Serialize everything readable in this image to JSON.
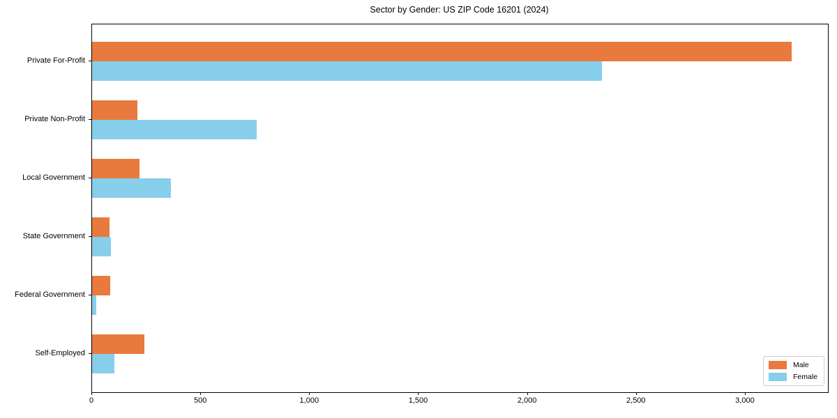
{
  "chart_data": {
    "type": "bar",
    "orientation": "horizontal",
    "title": "Sector by Gender: US ZIP Code 16201 (2024)",
    "categories": [
      "Private For-Profit",
      "Private Non-Profit",
      "Local Government",
      "State Government",
      "Federal Government",
      "Self-Employed"
    ],
    "series": [
      {
        "name": "Male",
        "color": "#e87a3d",
        "values": [
          3213,
          208,
          218,
          80,
          83,
          240
        ]
      },
      {
        "name": "Female",
        "color": "#87ceeb",
        "values": [
          2340,
          756,
          362,
          86,
          19,
          102
        ]
      }
    ],
    "xlabel": "",
    "ylabel": "",
    "xlim": [
      0,
      3378
    ],
    "x_ticks": [
      0,
      500,
      1000,
      1500,
      2000,
      2500,
      3000
    ],
    "x_tick_labels": [
      "0",
      "500",
      "1,000",
      "1,500",
      "2,000",
      "2,500",
      "3,000"
    ],
    "grid": false,
    "legend_position": "lower right"
  }
}
